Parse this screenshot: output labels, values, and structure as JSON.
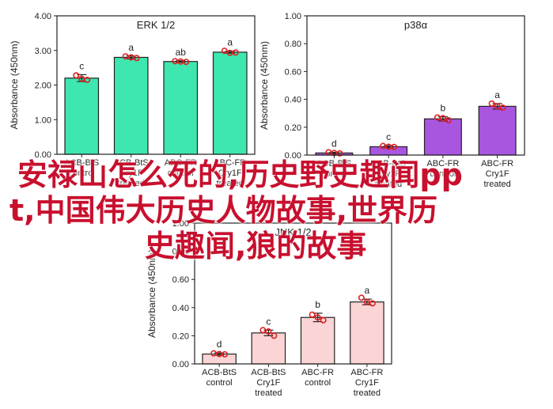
{
  "overlay_text": [
    "安禄山怎么死的,历史野史趣闻pp",
    "t,中国伟大历史人物故事,世界历",
    "史趣闻,狼的故事"
  ],
  "chart_data": [
    {
      "type": "bar",
      "title": "ERK 1/2",
      "ylabel": "Absorbance (450nm)",
      "ylim": [
        0,
        4.0
      ],
      "yticks": [
        0,
        1.0,
        2.0,
        3.0,
        4.0
      ],
      "ytick_labels": [
        "0.00",
        "1.00",
        "2.00",
        "3.00",
        "4.00"
      ],
      "categories": [
        [
          "ACB-BtS",
          "control"
        ],
        [
          "ACB-BtS",
          "Cry1F",
          "treated"
        ],
        [
          "ABC-FR",
          "control"
        ],
        [
          "ABC-FR",
          "Cry1F",
          "treated"
        ]
      ],
      "values": [
        2.2,
        2.8,
        2.68,
        2.95
      ],
      "errors": [
        0.1,
        0.04,
        0.02,
        0.03
      ],
      "letters": [
        "c",
        "a",
        "ab",
        "a"
      ],
      "points": [
        [
          2.28,
          2.15,
          2.18
        ],
        [
          2.83,
          2.78,
          2.8
        ],
        [
          2.69,
          2.67,
          2.68
        ],
        [
          2.99,
          2.94,
          2.93
        ]
      ],
      "bar_color": "#3ee6b0",
      "grid": false
    },
    {
      "type": "bar",
      "title": "p38α",
      "ylabel": "Absorbance (450nm)",
      "ylim": [
        0,
        1.0
      ],
      "yticks": [
        0,
        0.2,
        0.4,
        0.6,
        0.8,
        1.0
      ],
      "ytick_labels": [
        "0.00",
        "0.20",
        "0.40",
        "0.60",
        "0.80",
        "1.00"
      ],
      "categories": [
        [
          "ACB-BtS",
          "control"
        ],
        [
          "ACB-BtS",
          "Cry1F",
          "treated"
        ],
        [
          "ABC-FR",
          "control"
        ],
        [
          "ABC-FR",
          "Cry1F",
          "treated"
        ]
      ],
      "values": [
        0.015,
        0.06,
        0.26,
        0.35
      ],
      "errors": [
        0.005,
        0.008,
        0.015,
        0.02
      ],
      "letters": [
        "d",
        "c",
        "b",
        "a"
      ],
      "points": [
        [
          0.02,
          0.012,
          0.015
        ],
        [
          0.065,
          0.058,
          0.06
        ],
        [
          0.27,
          0.25,
          0.265
        ],
        [
          0.37,
          0.34,
          0.35
        ]
      ],
      "bar_color": "#a855e0",
      "grid": false
    },
    {
      "type": "bar",
      "title": "JNK 1/2",
      "ylabel": "Absorbance (450nm)",
      "ylim": [
        0,
        1.0
      ],
      "yticks": [
        0,
        0.2,
        0.4,
        0.6,
        0.8,
        1.0
      ],
      "ytick_labels": [
        "0.00",
        "0.20",
        "0.40",
        "0.60",
        "0.80",
        "1.00"
      ],
      "categories": [
        [
          "ACB-BtS",
          "control"
        ],
        [
          "ACB-BtS",
          "Cry1F",
          "treated"
        ],
        [
          "ABC-FR",
          "control"
        ],
        [
          "ABC-FR",
          "Cry1F",
          "treated"
        ]
      ],
      "values": [
        0.07,
        0.22,
        0.33,
        0.44
      ],
      "errors": [
        0.008,
        0.02,
        0.03,
        0.02
      ],
      "letters": [
        "d",
        "c",
        "b",
        "a"
      ],
      "points": [
        [
          0.075,
          0.068,
          0.07
        ],
        [
          0.24,
          0.2,
          0.23
        ],
        [
          0.35,
          0.31,
          0.33
        ],
        [
          0.47,
          0.43,
          0.44
        ]
      ],
      "bar_color": "#fbd5d5",
      "grid": false
    }
  ]
}
